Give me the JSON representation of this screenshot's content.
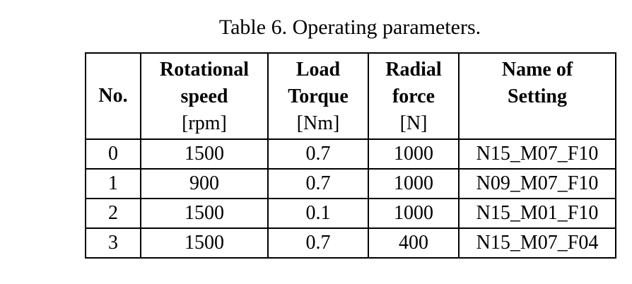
{
  "caption": "Table 6. Operating parameters.",
  "table": {
    "headers": [
      {
        "lines": [
          "No."
        ],
        "unit": ""
      },
      {
        "lines": [
          "Rotational",
          "speed"
        ],
        "unit": "[rpm]"
      },
      {
        "lines": [
          "Load",
          "Torque"
        ],
        "unit": "[Nm]"
      },
      {
        "lines": [
          "Radial",
          "force"
        ],
        "unit": "[N]"
      },
      {
        "lines": [
          "Name of",
          "Setting"
        ],
        "unit": ""
      }
    ],
    "rows": [
      [
        "0",
        "1500",
        "0.7",
        "1000",
        "N15_M07_F10"
      ],
      [
        "1",
        "900",
        "0.7",
        "1000",
        "N09_M07_F10"
      ],
      [
        "2",
        "1500",
        "0.1",
        "1000",
        "N15_M01_F10"
      ],
      [
        "3",
        "1500",
        "0.7",
        "400",
        "N15_M07_F04"
      ]
    ]
  }
}
